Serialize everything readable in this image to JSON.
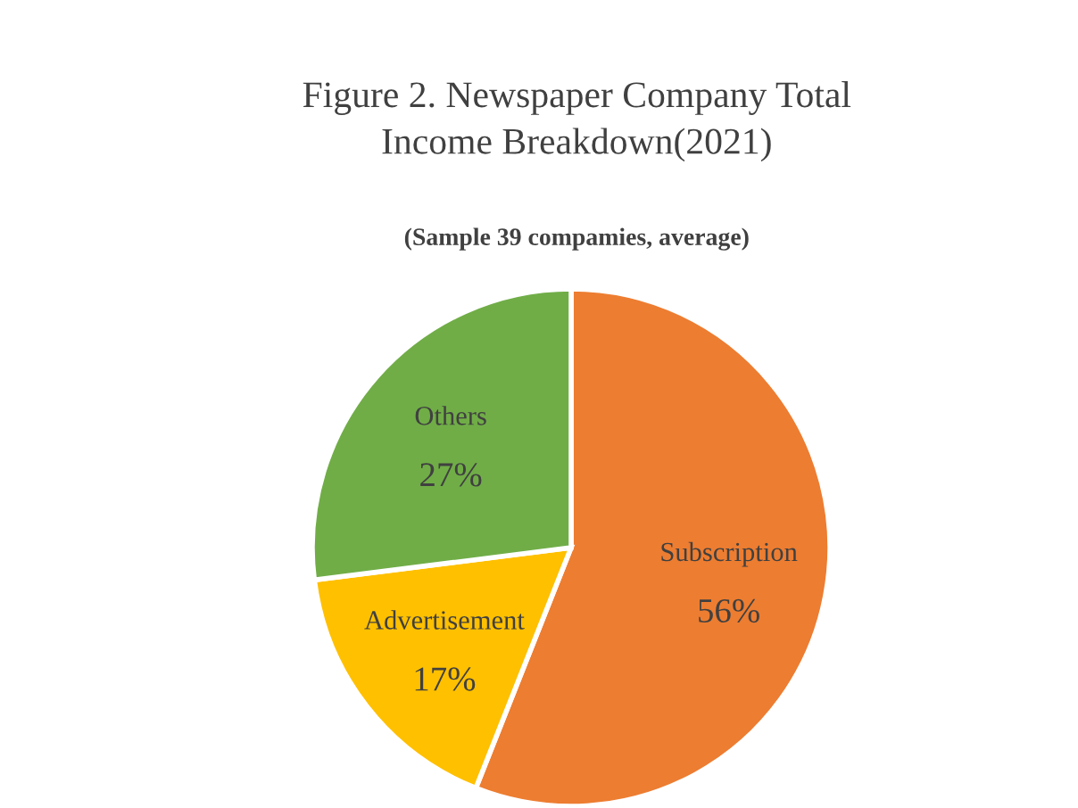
{
  "chart_data": {
    "type": "pie",
    "title": "Figure 2. Newspaper Company Total\nIncome Breakdown(2021)",
    "subtitle": "(Sample 39 compamies, average)",
    "categories": [
      "Subscription",
      "Advertisement",
      "Others"
    ],
    "values": [
      56,
      17,
      27
    ],
    "colors": [
      "#ed7d31",
      "#ffc000",
      "#70ad47"
    ],
    "value_labels": [
      "56%",
      "17%",
      "27%"
    ],
    "legend": false
  }
}
